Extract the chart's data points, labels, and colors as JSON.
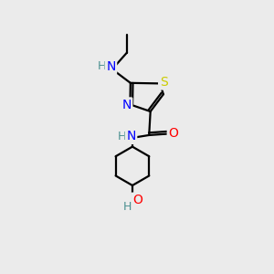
{
  "background_color": "#ebebeb",
  "bond_color": "#000000",
  "atom_colors": {
    "N": "#0000ff",
    "S": "#cccc00",
    "O": "#ff0000",
    "H": "#4a9090",
    "C": "#000000"
  },
  "figsize": [
    3.0,
    3.0
  ],
  "dpi": 100,
  "lw": 1.6,
  "fs": 10
}
